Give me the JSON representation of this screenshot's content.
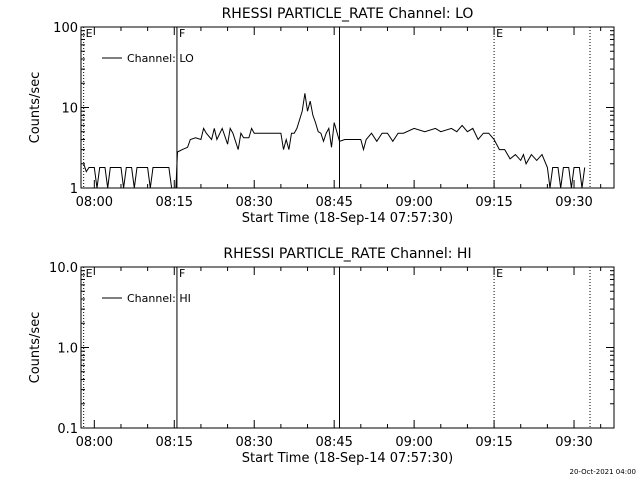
{
  "footer_timestamp": "20-Oct-2021 04:00",
  "chart_data": [
    {
      "type": "line",
      "title": "RHESSI PARTICLE_RATE Channel: LO",
      "xlabel": "Start Time (18-Sep-14 07:57:30)",
      "ylabel": "Counts/sec",
      "y_scale": "log",
      "ylim": [
        1,
        100
      ],
      "y_ticks": [
        1,
        10,
        100
      ],
      "y_tick_labels": [
        "1",
        "10",
        "100"
      ],
      "x_ticks": [
        "08:00",
        "08:15",
        "08:30",
        "08:45",
        "09:00",
        "09:15",
        "09:30"
      ],
      "legend": {
        "entries": [
          "Channel: LO"
        ],
        "position": "top-left"
      },
      "markers": [
        {
          "label": "E",
          "style": "dotted",
          "time": "07:58"
        },
        {
          "label": "F",
          "style": "solid",
          "time": "08:15.5"
        },
        {
          "label": "",
          "style": "solid",
          "time": "08:46"
        },
        {
          "label": "E",
          "style": "dotted",
          "time": "09:15"
        },
        {
          "label": "",
          "style": "dotted",
          "time": "09:33"
        }
      ],
      "series": [
        {
          "name": "Channel: LO",
          "points": [
            [
              "07:58",
              2.0
            ],
            [
              "07:58.5",
              1.6
            ],
            [
              "07:59",
              1.8
            ],
            [
              "08:00",
              1.8
            ],
            [
              "08:00.5",
              1.0
            ],
            [
              "08:01",
              1.8
            ],
            [
              "08:02",
              1.8
            ],
            [
              "08:02.5",
              1.0
            ],
            [
              "08:03",
              1.8
            ],
            [
              "08:05",
              1.8
            ],
            [
              "08:05.5",
              1.0
            ],
            [
              "08:06",
              1.8
            ],
            [
              "08:07",
              1.8
            ],
            [
              "08:07.5",
              1.0
            ],
            [
              "08:08",
              1.8
            ],
            [
              "08:10",
              1.8
            ],
            [
              "08:10.5",
              1.0
            ],
            [
              "08:11",
              1.8
            ],
            [
              "08:14",
              1.8
            ],
            [
              "08:14.5",
              1.0
            ],
            [
              "08:15.3",
              1.0
            ],
            [
              "08:15.6",
              2.8
            ],
            [
              "08:16.5",
              3.0
            ],
            [
              "08:17.5",
              3.2
            ],
            [
              "08:18",
              4.0
            ],
            [
              "08:19",
              4.2
            ],
            [
              "08:20",
              4.0
            ],
            [
              "08:20.5",
              5.5
            ],
            [
              "08:21",
              4.8
            ],
            [
              "08:22",
              4.0
            ],
            [
              "08:22.5",
              5.5
            ],
            [
              "08:23",
              4.0
            ],
            [
              "08:24",
              5.5
            ],
            [
              "08:25",
              3.5
            ],
            [
              "08:25.5",
              5.5
            ],
            [
              "08:26",
              4.8
            ],
            [
              "08:27",
              3.0
            ],
            [
              "08:27.5",
              4.8
            ],
            [
              "08:28",
              4.2
            ],
            [
              "08:29",
              4.2
            ],
            [
              "08:29.5",
              5.5
            ],
            [
              "08:30",
              4.8
            ],
            [
              "08:32",
              4.8
            ],
            [
              "08:34",
              4.8
            ],
            [
              "08:35",
              4.8
            ],
            [
              "08:35.5",
              3.0
            ],
            [
              "08:36",
              4.0
            ],
            [
              "08:36.5",
              3.0
            ],
            [
              "08:37",
              4.8
            ],
            [
              "08:37.5",
              4.8
            ],
            [
              "08:38",
              5.5
            ],
            [
              "08:38.5",
              7.0
            ],
            [
              "08:39",
              9.0
            ],
            [
              "08:39.5",
              15.0
            ],
            [
              "08:40",
              9.0
            ],
            [
              "08:40.5",
              12.0
            ],
            [
              "08:41",
              8.0
            ],
            [
              "08:41.5",
              6.5
            ],
            [
              "08:42",
              5.0
            ],
            [
              "08:42.5",
              4.8
            ],
            [
              "08:43",
              3.8
            ],
            [
              "08:43.5",
              4.8
            ],
            [
              "08:44",
              5.5
            ],
            [
              "08:44.5",
              3.2
            ],
            [
              "08:45",
              6.5
            ],
            [
              "08:45.5",
              5.0
            ],
            [
              "08:46",
              3.8
            ],
            [
              "08:47",
              4.0
            ],
            [
              "08:49",
              4.0
            ],
            [
              "08:50",
              4.0
            ],
            [
              "08:50.5",
              3.0
            ],
            [
              "08:51",
              4.0
            ],
            [
              "08:52",
              4.8
            ],
            [
              "08:53",
              3.8
            ],
            [
              "08:54",
              4.8
            ],
            [
              "08:55",
              4.8
            ],
            [
              "08:56",
              3.8
            ],
            [
              "08:57",
              4.8
            ],
            [
              "08:58",
              4.8
            ],
            [
              "09:00",
              5.5
            ],
            [
              "09:02",
              5.0
            ],
            [
              "09:04",
              5.5
            ],
            [
              "09:05",
              5.0
            ],
            [
              "09:07",
              5.5
            ],
            [
              "09:08",
              5.0
            ],
            [
              "09:09",
              6.0
            ],
            [
              "09:10",
              5.0
            ],
            [
              "09:11",
              5.5
            ],
            [
              "09:12",
              4.0
            ],
            [
              "09:13",
              4.8
            ],
            [
              "09:14",
              4.8
            ],
            [
              "09:15",
              4.0
            ],
            [
              "09:16",
              3.0
            ],
            [
              "09:17",
              3.0
            ],
            [
              "09:18",
              2.3
            ],
            [
              "09:19",
              2.6
            ],
            [
              "09:20",
              2.2
            ],
            [
              "09:20.5",
              2.6
            ],
            [
              "09:21",
              2.0
            ],
            [
              "09:22",
              2.6
            ],
            [
              "09:23",
              2.2
            ],
            [
              "09:24",
              2.6
            ],
            [
              "09:25",
              1.8
            ],
            [
              "09:25.5",
              1.0
            ],
            [
              "09:26",
              1.8
            ],
            [
              "09:27",
              1.8
            ],
            [
              "09:27.5",
              1.0
            ],
            [
              "09:28",
              1.8
            ],
            [
              "09:29",
              1.8
            ],
            [
              "09:29.5",
              1.0
            ],
            [
              "09:30",
              1.8
            ],
            [
              "09:31",
              1.8
            ],
            [
              "09:31.5",
              1.0
            ],
            [
              "09:32",
              1.8
            ]
          ]
        }
      ]
    },
    {
      "type": "line",
      "title": "RHESSI PARTICLE_RATE Channel: HI",
      "xlabel": "Start Time (18-Sep-14 07:57:30)",
      "ylabel": "Counts/sec",
      "y_scale": "log",
      "ylim": [
        0.1,
        10
      ],
      "y_ticks": [
        0.1,
        1,
        10
      ],
      "y_tick_labels": [
        "0.1",
        "1.0",
        "10.0"
      ],
      "x_ticks": [
        "08:00",
        "08:15",
        "08:30",
        "08:45",
        "09:00",
        "09:15",
        "09:30"
      ],
      "legend": {
        "entries": [
          "Channel: HI"
        ],
        "position": "top-left"
      },
      "markers": [
        {
          "label": "E",
          "style": "dotted",
          "time": "07:58"
        },
        {
          "label": "F",
          "style": "solid",
          "time": "08:15.5"
        },
        {
          "label": "",
          "style": "solid",
          "time": "08:46"
        },
        {
          "label": "E",
          "style": "dotted",
          "time": "09:15"
        },
        {
          "label": "",
          "style": "dotted",
          "time": "09:33"
        }
      ],
      "series": [
        {
          "name": "Channel: HI",
          "points": []
        }
      ]
    }
  ]
}
